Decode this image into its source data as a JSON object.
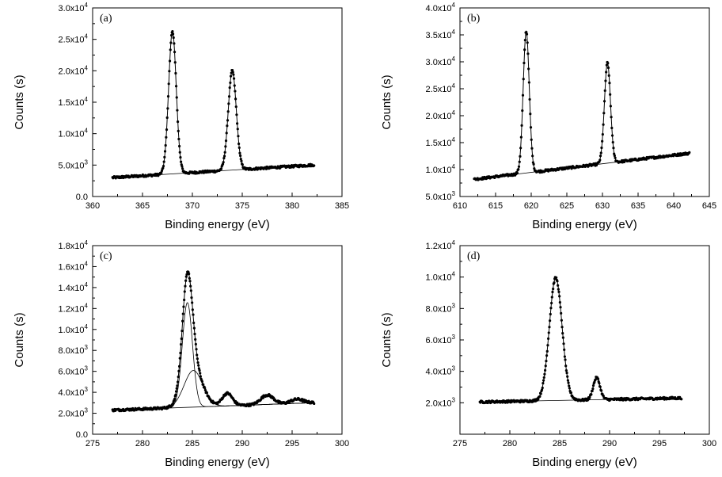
{
  "chart_data": [
    {
      "type": "scatter",
      "panel_label": "(a)",
      "xlabel": "Binding energy (eV)",
      "ylabel": "Counts (s)",
      "xlim": [
        360,
        385
      ],
      "ylim": [
        0,
        30000
      ],
      "x_ticks": [
        360,
        365,
        370,
        375,
        380,
        385
      ],
      "x_tick_labels": [
        "360",
        "365",
        "370",
        "375",
        "380",
        "385"
      ],
      "y_ticks": [
        0,
        5000,
        10000,
        15000,
        20000,
        25000,
        30000
      ],
      "y_tick_labels": [
        [
          "0.0",
          ""
        ],
        [
          "5.0x10",
          "3"
        ],
        [
          "1.0x10",
          "4"
        ],
        [
          "1.5x10",
          "4"
        ],
        [
          "2.0x10",
          "4"
        ],
        [
          "2.5x10",
          "4"
        ],
        [
          "3.0x10",
          "4"
        ]
      ],
      "data_range": [
        362,
        382.2
      ],
      "background": [
        [
          362,
          3000
        ],
        [
          382,
          5000
        ]
      ],
      "peaks": [
        {
          "center": 368.0,
          "height": 22700,
          "fwhm": 0.9
        },
        {
          "center": 374.0,
          "height": 15800,
          "fwhm": 0.95
        }
      ],
      "series": [
        {
          "style": "points-with-fit-line"
        }
      ]
    },
    {
      "type": "scatter",
      "panel_label": "(b)",
      "xlabel": "Binding energy (eV)",
      "ylabel": "Counts (s)",
      "xlim": [
        610,
        645
      ],
      "ylim": [
        5000,
        40000
      ],
      "x_ticks": [
        610,
        615,
        620,
        625,
        630,
        635,
        640,
        645
      ],
      "x_tick_labels": [
        "610",
        "615",
        "620",
        "625",
        "630",
        "635",
        "640",
        "645"
      ],
      "y_ticks": [
        5000,
        10000,
        15000,
        20000,
        25000,
        30000,
        35000,
        40000
      ],
      "y_tick_labels": [
        [
          "5.0x10",
          "3"
        ],
        [
          "1.0x10",
          "4"
        ],
        [
          "1.5x10",
          "4"
        ],
        [
          "2.0x10",
          "4"
        ],
        [
          "2.5x10",
          "4"
        ],
        [
          "3.0x10",
          "4"
        ],
        [
          "3.5x10",
          "4"
        ],
        [
          "4.0x10",
          "4"
        ]
      ],
      "data_range": [
        612,
        642.2
      ],
      "background": [
        [
          612,
          8200
        ],
        [
          642,
          13000
        ]
      ],
      "peaks": [
        {
          "center": 619.3,
          "height": 26300,
          "fwhm": 1.0
        },
        {
          "center": 630.7,
          "height": 18600,
          "fwhm": 1.0
        }
      ],
      "series": [
        {
          "style": "points-with-fit-line"
        }
      ]
    },
    {
      "type": "scatter",
      "panel_label": "(c)",
      "xlabel": "Binding energy (eV)",
      "ylabel": "Counts (s)",
      "xlim": [
        275,
        300
      ],
      "ylim": [
        0,
        18000
      ],
      "x_ticks": [
        275,
        280,
        285,
        290,
        295,
        300
      ],
      "x_tick_labels": [
        "275",
        "280",
        "285",
        "290",
        "295",
        "300"
      ],
      "y_ticks": [
        0,
        2000,
        4000,
        6000,
        8000,
        10000,
        12000,
        14000,
        16000,
        18000
      ],
      "y_tick_labels": [
        [
          "0.0",
          ""
        ],
        [
          "2.0x10",
          "3"
        ],
        [
          "4.0x10",
          "3"
        ],
        [
          "6.0x10",
          "3"
        ],
        [
          "8.0x10",
          "3"
        ],
        [
          "1.0x10",
          "4"
        ],
        [
          "1.2x10",
          "4"
        ],
        [
          "1.4x10",
          "4"
        ],
        [
          "1.6x10",
          "4"
        ],
        [
          "1.8x10",
          "4"
        ]
      ],
      "data_range": [
        277,
        297.2
      ],
      "background": [
        [
          277,
          2300
        ],
        [
          297,
          3000
        ]
      ],
      "peaks": [
        {
          "center": 284.5,
          "height": 10000,
          "fwhm": 1.2
        },
        {
          "center": 285.1,
          "height": 3500,
          "fwhm": 2.2
        },
        {
          "center": 288.5,
          "height": 1200,
          "fwhm": 1.2
        },
        {
          "center": 292.5,
          "height": 900,
          "fwhm": 1.5
        },
        {
          "center": 295.5,
          "height": 400,
          "fwhm": 1.5
        }
      ],
      "component_peaks": [
        0,
        1
      ],
      "series": [
        {
          "style": "points-with-fit-line"
        }
      ]
    },
    {
      "type": "scatter",
      "panel_label": "(d)",
      "xlabel": "Binding energy (eV)",
      "ylabel": "Counts (s)",
      "xlim": [
        275,
        300
      ],
      "ylim": [
        0,
        12000
      ],
      "x_ticks": [
        275,
        280,
        285,
        290,
        295,
        300
      ],
      "x_tick_labels": [
        "275",
        "280",
        "285",
        "290",
        "295",
        "300"
      ],
      "y_ticks": [
        2000,
        4000,
        6000,
        8000,
        10000,
        12000
      ],
      "y_tick_labels": [
        [
          "2.0x10",
          "3"
        ],
        [
          "4.0x10",
          "3"
        ],
        [
          "6.0x10",
          "3"
        ],
        [
          "8.0x10",
          "3"
        ],
        [
          "1.0x10",
          "4"
        ],
        [
          "1.2x10",
          "4"
        ]
      ],
      "data_range": [
        277,
        297.2
      ],
      "background": [
        [
          277,
          2050
        ],
        [
          297,
          2300
        ]
      ],
      "peaks": [
        {
          "center": 284.6,
          "height": 7800,
          "fwhm": 1.5
        },
        {
          "center": 288.7,
          "height": 1400,
          "fwhm": 0.8
        }
      ],
      "series": [
        {
          "style": "points-with-fit-line"
        }
      ]
    }
  ]
}
